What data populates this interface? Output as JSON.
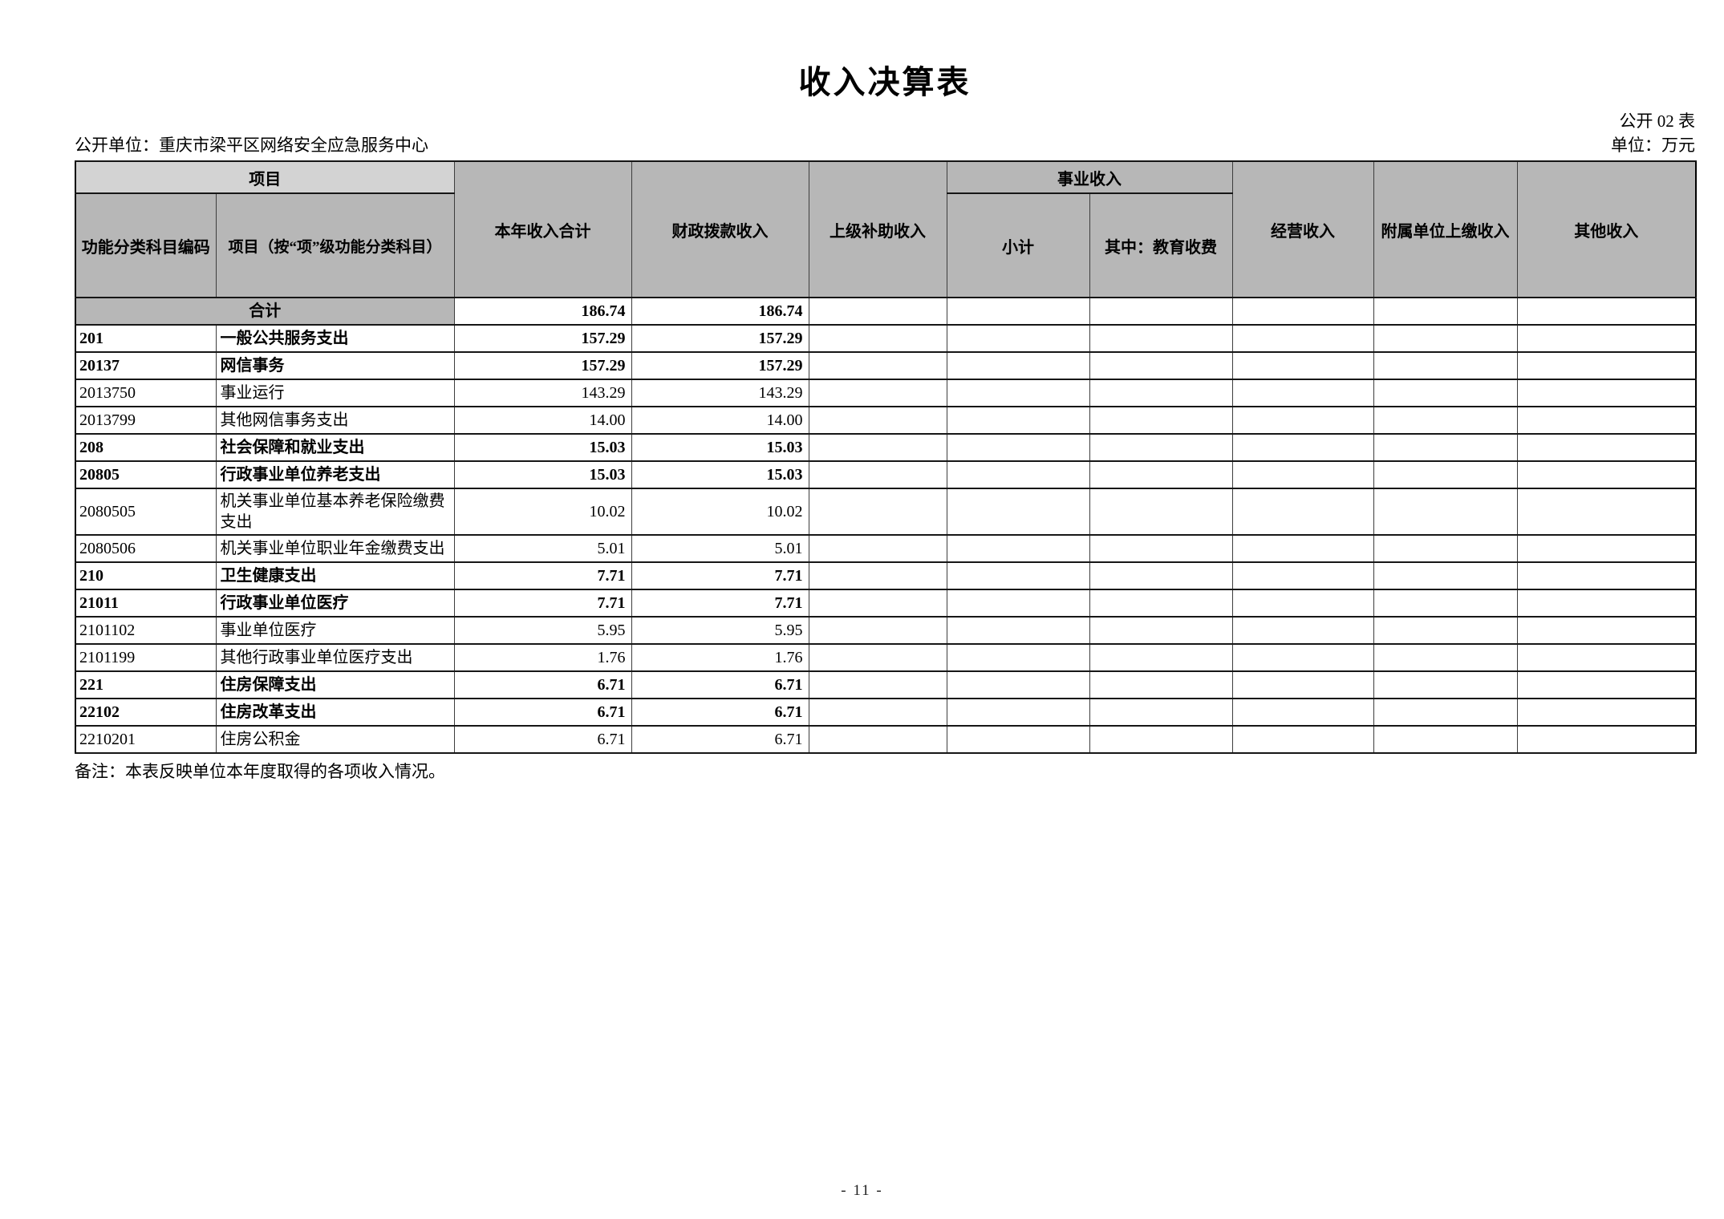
{
  "page": {
    "title": "收入决算表",
    "form_code": "公开 02 表",
    "publisher": "公开单位：重庆市梁平区网络安全应急服务中心",
    "unit": "单位：万元",
    "note": "备注：本表反映单位本年度取得的各项收入情况。",
    "page_number": "- 11 -"
  },
  "colors": {
    "header_fill": "#b7b7b7",
    "header_light_fill": "#d3d3d3",
    "border": "#000000"
  },
  "table": {
    "header": {
      "project_group": "项目",
      "code": "功能分类科目编码",
      "project_item": "项目（按“项”级功能分类科目）",
      "total_income": "本年收入合计",
      "fiscal_income": "财政拨款收入",
      "superior_subsidy": "上级补助收入",
      "business_income_group": "事业收入",
      "business_subtotal": "小计",
      "education_fee": "其中：教育收费",
      "operating_income": "经营收入",
      "affiliated_income": "附属单位上缴收入",
      "other_income": "其他收入"
    },
    "total_row": {
      "label": "合计",
      "values": [
        "186.74",
        "186.74",
        "",
        "",
        "",
        "",
        "",
        ""
      ]
    },
    "rows": [
      {
        "code": "201",
        "name": "一般公共服务支出",
        "bold": true,
        "values": [
          "157.29",
          "157.29",
          "",
          "",
          "",
          "",
          "",
          ""
        ]
      },
      {
        "code": "20137",
        "name": "网信事务",
        "bold": true,
        "values": [
          "157.29",
          "157.29",
          "",
          "",
          "",
          "",
          "",
          ""
        ]
      },
      {
        "code": "2013750",
        "name": "事业运行",
        "bold": false,
        "values": [
          "143.29",
          "143.29",
          "",
          "",
          "",
          "",
          "",
          ""
        ]
      },
      {
        "code": "2013799",
        "name": "其他网信事务支出",
        "bold": false,
        "values": [
          "14.00",
          "14.00",
          "",
          "",
          "",
          "",
          "",
          ""
        ]
      },
      {
        "code": "208",
        "name": "社会保障和就业支出",
        "bold": true,
        "values": [
          "15.03",
          "15.03",
          "",
          "",
          "",
          "",
          "",
          ""
        ]
      },
      {
        "code": "20805",
        "name": "行政事业单位养老支出",
        "bold": true,
        "values": [
          "15.03",
          "15.03",
          "",
          "",
          "",
          "",
          "",
          ""
        ]
      },
      {
        "code": "2080505",
        "name": "机关事业单位基本养老保险缴费支出",
        "bold": false,
        "values": [
          "10.02",
          "10.02",
          "",
          "",
          "",
          "",
          "",
          ""
        ]
      },
      {
        "code": "2080506",
        "name": "机关事业单位职业年金缴费支出",
        "bold": false,
        "values": [
          "5.01",
          "5.01",
          "",
          "",
          "",
          "",
          "",
          ""
        ]
      },
      {
        "code": "210",
        "name": "卫生健康支出",
        "bold": true,
        "values": [
          "7.71",
          "7.71",
          "",
          "",
          "",
          "",
          "",
          ""
        ]
      },
      {
        "code": "21011",
        "name": "行政事业单位医疗",
        "bold": true,
        "values": [
          "7.71",
          "7.71",
          "",
          "",
          "",
          "",
          "",
          ""
        ]
      },
      {
        "code": "2101102",
        "name": "事业单位医疗",
        "bold": false,
        "values": [
          "5.95",
          "5.95",
          "",
          "",
          "",
          "",
          "",
          ""
        ]
      },
      {
        "code": "2101199",
        "name": "其他行政事业单位医疗支出",
        "bold": false,
        "values": [
          "1.76",
          "1.76",
          "",
          "",
          "",
          "",
          "",
          ""
        ]
      },
      {
        "code": "221",
        "name": "住房保障支出",
        "bold": true,
        "values": [
          "6.71",
          "6.71",
          "",
          "",
          "",
          "",
          "",
          ""
        ]
      },
      {
        "code": "22102",
        "name": "住房改革支出",
        "bold": true,
        "values": [
          "6.71",
          "6.71",
          "",
          "",
          "",
          "",
          "",
          ""
        ]
      },
      {
        "code": "2210201",
        "name": "住房公积金",
        "bold": false,
        "values": [
          "6.71",
          "6.71",
          "",
          "",
          "",
          "",
          "",
          ""
        ]
      }
    ]
  }
}
